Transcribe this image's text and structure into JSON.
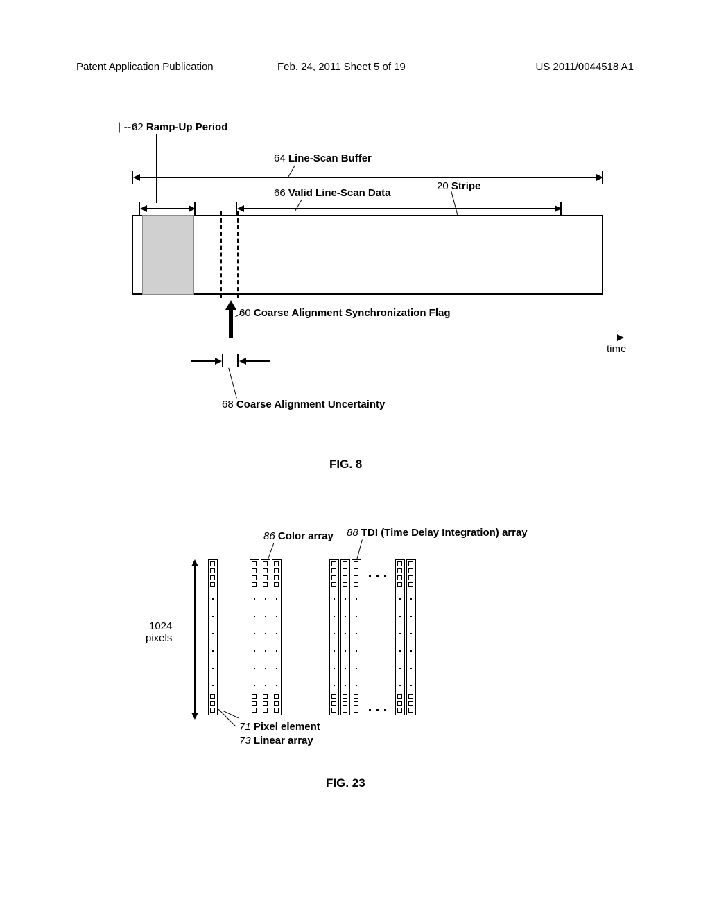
{
  "header": {
    "left": "Patent Application Publication",
    "center": "Feb. 24, 2011  Sheet 5 of 19",
    "right": "US 2011/0044518 A1"
  },
  "fig8": {
    "labels": {
      "rampup": {
        "num": "62",
        "txt": "Ramp-Up Period"
      },
      "linescan_buffer": {
        "num": "64",
        "txt": "Line-Scan Buffer"
      },
      "valid_data": {
        "num": "66",
        "txt": "Valid Line-Scan Data"
      },
      "stripe": {
        "num": "20",
        "txt": "Stripe"
      },
      "sync_flag": {
        "num": "60",
        "txt": "Coarse Alignment Synchronization Flag"
      },
      "uncertainty": {
        "num": "68",
        "txt": "Coarse Alignment Uncertainty"
      },
      "time": "time"
    },
    "caption": "FIG. 8"
  },
  "fig23": {
    "labels": {
      "pixels": "1024\npixels",
      "color_array": {
        "num": "86",
        "txt": "Color array"
      },
      "tdi_array": {
        "num": "88",
        "txt": "TDI (Time Delay Integration) array"
      },
      "pixel_element": {
        "num": "71",
        "txt": "Pixel element"
      },
      "linear_array": {
        "num": "73",
        "txt": "Linear array"
      }
    },
    "caption": "FIG. 23"
  }
}
